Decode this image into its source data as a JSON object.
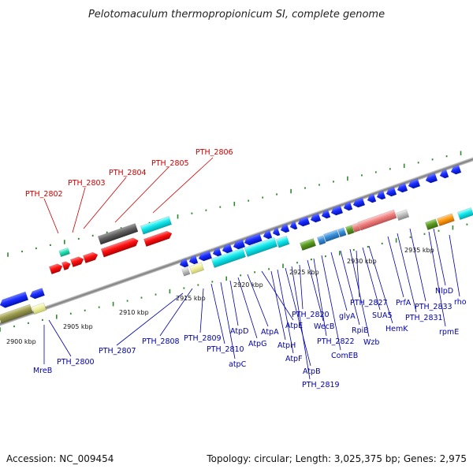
{
  "title": "Pelotomaculum thermopropionicum SI, complete genome",
  "footer": {
    "accession": "Accession: NC_009454",
    "topology": "Topology: circular; Length: 3,025,375 bp; Genes: 2,975"
  },
  "colors": {
    "red_label": "#cc0000",
    "blue_label": "#0000aa",
    "backbone": "#888888",
    "tick": "#2f8a2f"
  },
  "tick_labels": [
    "2900 kbp",
    "2905 kbp",
    "2910 kbp",
    "2915 kbp",
    "2920 kbp",
    "2925 kbp",
    "2930 kbp",
    "2935 kbp"
  ],
  "red_labels": [
    "PTH_2802",
    "PTH_2803",
    "PTH_2804",
    "PTH_2805",
    "PTH_2806"
  ],
  "blue_labels": [
    "MreB",
    "PTH_2800",
    "PTH_2807",
    "PTH_2808",
    "PTH_2809",
    "PTH_2810",
    "atpC",
    "AtpD",
    "AtpG",
    "AtpA",
    "AtpE",
    "AtpH",
    "AtpF",
    "AtpB",
    "PTH_2819",
    "PTH_2820",
    "WecB",
    "PTH_2822",
    "ComEB",
    "glyA",
    "RpiB",
    "Wzb",
    "PTH_2827",
    "SUA5",
    "HemK",
    "PrfA",
    "PTH_2831",
    "PTH_2833",
    "rpmE",
    "NlpD",
    "rho"
  ]
}
